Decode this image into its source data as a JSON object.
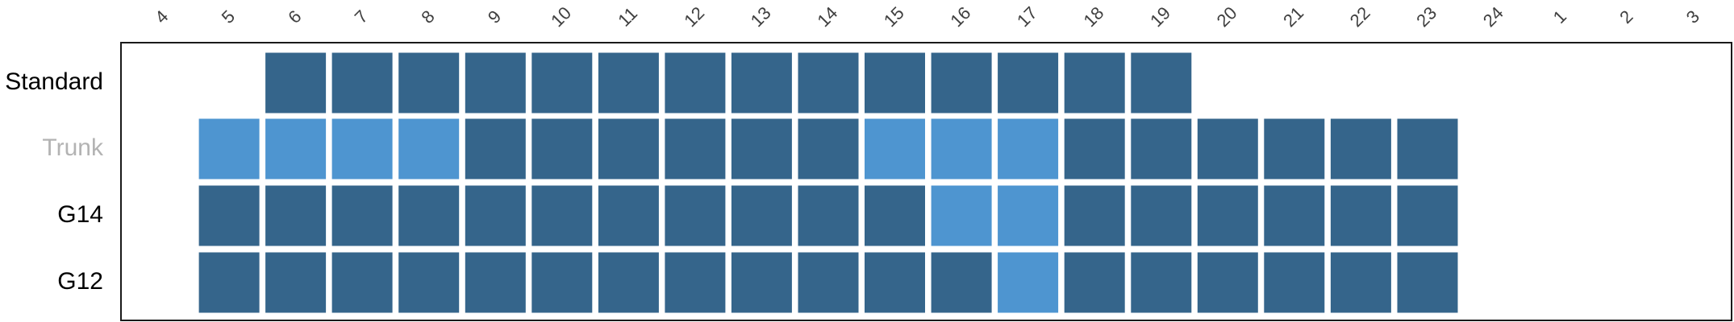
{
  "chart_data": {
    "type": "heatmap",
    "title": "",
    "xlabel": "",
    "ylabel": "",
    "hours": [
      "4",
      "5",
      "6",
      "7",
      "8",
      "9",
      "10",
      "11",
      "12",
      "13",
      "14",
      "15",
      "16",
      "17",
      "18",
      "19",
      "20",
      "21",
      "22",
      "23",
      "24",
      "1",
      "2",
      "3"
    ],
    "rows": [
      {
        "label": "Standard",
        "label_color": "#000000",
        "cells": [
          {
            "hour": "6",
            "level": "dark"
          },
          {
            "hour": "7",
            "level": "dark"
          },
          {
            "hour": "8",
            "level": "dark"
          },
          {
            "hour": "9",
            "level": "dark"
          },
          {
            "hour": "10",
            "level": "dark"
          },
          {
            "hour": "11",
            "level": "dark"
          },
          {
            "hour": "12",
            "level": "dark"
          },
          {
            "hour": "13",
            "level": "dark"
          },
          {
            "hour": "14",
            "level": "dark"
          },
          {
            "hour": "15",
            "level": "dark"
          },
          {
            "hour": "16",
            "level": "dark"
          },
          {
            "hour": "17",
            "level": "dark"
          },
          {
            "hour": "18",
            "level": "dark"
          },
          {
            "hour": "19",
            "level": "dark"
          }
        ]
      },
      {
        "label": "Trunk",
        "label_color": "#b3b3b3",
        "cells": [
          {
            "hour": "5",
            "level": "light"
          },
          {
            "hour": "6",
            "level": "light"
          },
          {
            "hour": "7",
            "level": "light"
          },
          {
            "hour": "8",
            "level": "light"
          },
          {
            "hour": "9",
            "level": "dark"
          },
          {
            "hour": "10",
            "level": "dark"
          },
          {
            "hour": "11",
            "level": "dark"
          },
          {
            "hour": "12",
            "level": "dark"
          },
          {
            "hour": "13",
            "level": "dark"
          },
          {
            "hour": "14",
            "level": "dark"
          },
          {
            "hour": "15",
            "level": "light"
          },
          {
            "hour": "16",
            "level": "light"
          },
          {
            "hour": "17",
            "level": "light"
          },
          {
            "hour": "18",
            "level": "dark"
          },
          {
            "hour": "19",
            "level": "dark"
          },
          {
            "hour": "20",
            "level": "dark"
          },
          {
            "hour": "21",
            "level": "dark"
          },
          {
            "hour": "22",
            "level": "dark"
          },
          {
            "hour": "23",
            "level": "dark"
          }
        ]
      },
      {
        "label": "G14",
        "label_color": "#000000",
        "cells": [
          {
            "hour": "5",
            "level": "dark"
          },
          {
            "hour": "6",
            "level": "dark"
          },
          {
            "hour": "7",
            "level": "dark"
          },
          {
            "hour": "8",
            "level": "dark"
          },
          {
            "hour": "9",
            "level": "dark"
          },
          {
            "hour": "10",
            "level": "dark"
          },
          {
            "hour": "11",
            "level": "dark"
          },
          {
            "hour": "12",
            "level": "dark"
          },
          {
            "hour": "13",
            "level": "dark"
          },
          {
            "hour": "14",
            "level": "dark"
          },
          {
            "hour": "15",
            "level": "dark"
          },
          {
            "hour": "16",
            "level": "light"
          },
          {
            "hour": "17",
            "level": "light"
          },
          {
            "hour": "18",
            "level": "dark"
          },
          {
            "hour": "19",
            "level": "dark"
          },
          {
            "hour": "20",
            "level": "dark"
          },
          {
            "hour": "21",
            "level": "dark"
          },
          {
            "hour": "22",
            "level": "dark"
          },
          {
            "hour": "23",
            "level": "dark"
          }
        ]
      },
      {
        "label": "G12",
        "label_color": "#000000",
        "cells": [
          {
            "hour": "5",
            "level": "dark"
          },
          {
            "hour": "6",
            "level": "dark"
          },
          {
            "hour": "7",
            "level": "dark"
          },
          {
            "hour": "8",
            "level": "dark"
          },
          {
            "hour": "9",
            "level": "dark"
          },
          {
            "hour": "10",
            "level": "dark"
          },
          {
            "hour": "11",
            "level": "dark"
          },
          {
            "hour": "12",
            "level": "dark"
          },
          {
            "hour": "13",
            "level": "dark"
          },
          {
            "hour": "14",
            "level": "dark"
          },
          {
            "hour": "15",
            "level": "dark"
          },
          {
            "hour": "16",
            "level": "dark"
          },
          {
            "hour": "17",
            "level": "light"
          },
          {
            "hour": "18",
            "level": "dark"
          },
          {
            "hour": "19",
            "level": "dark"
          },
          {
            "hour": "20",
            "level": "dark"
          },
          {
            "hour": "21",
            "level": "dark"
          },
          {
            "hour": "22",
            "level": "dark"
          },
          {
            "hour": "23",
            "level": "dark"
          }
        ]
      }
    ],
    "colors": {
      "dark": "#35658b",
      "light": "#4e95d0",
      "frame": "#1a1a1a",
      "hour_label": "#404040"
    },
    "legend": "none",
    "grid": false
  }
}
